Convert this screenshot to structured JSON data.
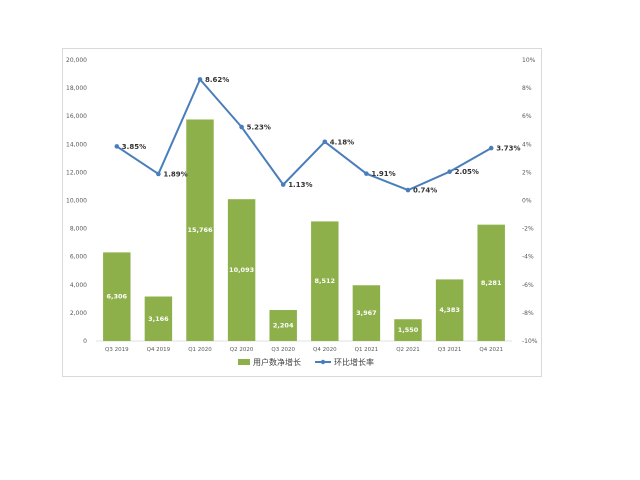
{
  "chart_data": {
    "type": "bar",
    "categories": [
      "Q3 2019",
      "Q4 2019",
      "Q1 2020",
      "Q2 2020",
      "Q3 2020",
      "Q4 2020",
      "Q1 2021",
      "Q2 2021",
      "Q3 2021",
      "Q4 2021"
    ],
    "series": [
      {
        "name": "用户数净增长",
        "type": "bar",
        "axis": "left",
        "values": [
          6306,
          3166,
          15766,
          10093,
          2204,
          8512,
          3967,
          1550,
          4383,
          8281
        ],
        "labels": [
          "6,306",
          "3,166",
          "15,766",
          "10,093",
          "2,204",
          "8,512",
          "3,967",
          "1,550",
          "4,383",
          "8,281"
        ],
        "color": "#8db04a"
      },
      {
        "name": "环比增长率",
        "type": "line",
        "axis": "right",
        "values": [
          3.85,
          1.89,
          8.62,
          5.23,
          1.13,
          4.18,
          1.91,
          0.74,
          2.05,
          3.73
        ],
        "labels": [
          "3.85%",
          "1.89%",
          "8.62%",
          "5.23%",
          "1.13%",
          "4.18%",
          "1.91%",
          "0.74%",
          "2.05%",
          "3.73%"
        ],
        "color": "#4a7ebb"
      }
    ],
    "y_left": {
      "min": 0,
      "max": 20000,
      "ticks": [
        "0",
        "2,000",
        "4,000",
        "6,000",
        "8,000",
        "10,000",
        "12,000",
        "14,000",
        "16,000",
        "18,000",
        "20,000"
      ]
    },
    "y_right": {
      "min": -10,
      "max": 10,
      "ticks": [
        "-10%",
        "-8%",
        "-6%",
        "-4%",
        "-2%",
        "0%",
        "2%",
        "4%",
        "6%",
        "8%",
        "10%"
      ]
    },
    "grid": false,
    "legend_position": "bottom"
  }
}
